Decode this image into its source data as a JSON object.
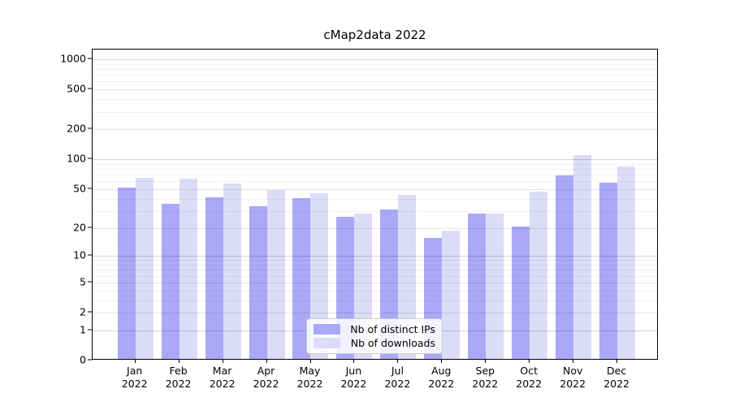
{
  "figure": {
    "title": "cMap2data 2022",
    "background_color": "#ffffff"
  },
  "legend": {
    "position": "lower center",
    "items": [
      {
        "label": "Nb of distinct IPs",
        "color": "#a9a9f7"
      },
      {
        "label": "Nb of downloads",
        "color": "#dcdcf9"
      }
    ]
  },
  "y_axis": {
    "scale": "log(value+1)",
    "labeled_ticks": [
      1000,
      500,
      200,
      100,
      50,
      20,
      10,
      5,
      2,
      1,
      0
    ],
    "major_gridlines": [
      1,
      10,
      100,
      1000
    ],
    "mid_gridlines": [
      2,
      5,
      20,
      50,
      200,
      500
    ],
    "minor_gridlines": [
      3,
      4,
      6,
      7,
      8,
      9,
      30,
      40,
      60,
      70,
      80,
      90,
      300,
      400,
      600,
      700,
      800,
      900
    ],
    "max_value": 1250
  },
  "x_axis": {
    "months": [
      "Jan",
      "Feb",
      "Mar",
      "Apr",
      "May",
      "Jun",
      "Jul",
      "Aug",
      "Sep",
      "Oct",
      "Nov",
      "Dec"
    ],
    "year": "2022"
  },
  "chart_data": {
    "type": "bar",
    "title": "cMap2data 2022",
    "categories": [
      "Jan 2022",
      "Feb 2022",
      "Mar 2022",
      "Apr 2022",
      "May 2022",
      "Jun 2022",
      "Jul 2022",
      "Aug 2022",
      "Sep 2022",
      "Oct 2022",
      "Nov 2022",
      "Dec 2022"
    ],
    "series": [
      {
        "name": "Nb of distinct IPs",
        "color": "#a9a9f7",
        "values": [
          50,
          34,
          40,
          32,
          39,
          25,
          30,
          15,
          27,
          20,
          66,
          56
        ]
      },
      {
        "name": "Nb of downloads",
        "color": "#dcdcf9",
        "values": [
          63,
          61,
          55,
          47,
          44,
          27,
          42,
          18,
          27,
          45,
          107,
          82
        ]
      }
    ],
    "xlabel": "",
    "ylabel": "",
    "ylim": [
      0,
      1250
    ],
    "yscale": "log1p",
    "ytick_labels": [
      "1000",
      "500",
      "200",
      "100",
      "50",
      "20",
      "10",
      "5",
      "2",
      "1",
      "0"
    ],
    "grid": true,
    "legend_position": "lower center"
  }
}
